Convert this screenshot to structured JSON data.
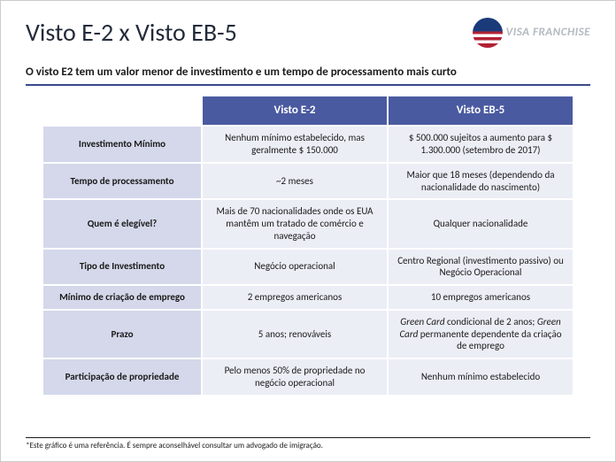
{
  "title": "Visto E-2 x Visto EB-5",
  "logo_text": "VISA FRANCHISE",
  "subtitle": "O visto E2 tem um valor menor de investimento e um tempo de processamento mais curto",
  "table": {
    "col1_header": "Visto E-2",
    "col2_header": "Visto EB-5",
    "rows": [
      {
        "label": "Investimento Mínimo",
        "e2": "Nenhum mínimo estabelecido, mas geralmente $ 150.000",
        "eb5": "$ 500.000 sujeitos a aumento para $ 1.300.000 (setembro de 2017)"
      },
      {
        "label": "Tempo de processamento",
        "e2": "~2 meses",
        "eb5": "Maior que 18 meses (dependendo da nacionalidade do nascimento)"
      },
      {
        "label": "Quem é elegível?",
        "e2": "Mais de 70 nacionalidades onde os EUA mantêm um tratado de comércio e navegação",
        "eb5": "Qualquer nacionalidade"
      },
      {
        "label": "Tipo de Investimento",
        "e2": "Negócio operacional",
        "eb5": "Centro Regional (investimento passivo) ou Negócio Operacional"
      },
      {
        "label": "Mínimo de criação de emprego",
        "e2": "2 empregos americanos",
        "eb5": "10 empregos americanos"
      },
      {
        "label": "Prazo",
        "e2": "5 anos; renováveis",
        "eb5": "<em>Green Card</em> condicional de 2 anos; <em>Green Card</em> permanente dependente da criação de emprego"
      },
      {
        "label": "Participação de propriedade",
        "e2": "Pelo menos 50% de propriedade no negócio operacional",
        "eb5": "Nenhum mínimo estabelecido"
      }
    ]
  },
  "footnote": "*Este gráfico é uma referência. É sempre aconselhável consultar um advogado de imigração.",
  "colors": {
    "header_bg": "#4a5aa0",
    "row_label_bg": "#d4d8ea",
    "cell_bg": "#eceef6",
    "divider": "#3a4a8a"
  }
}
